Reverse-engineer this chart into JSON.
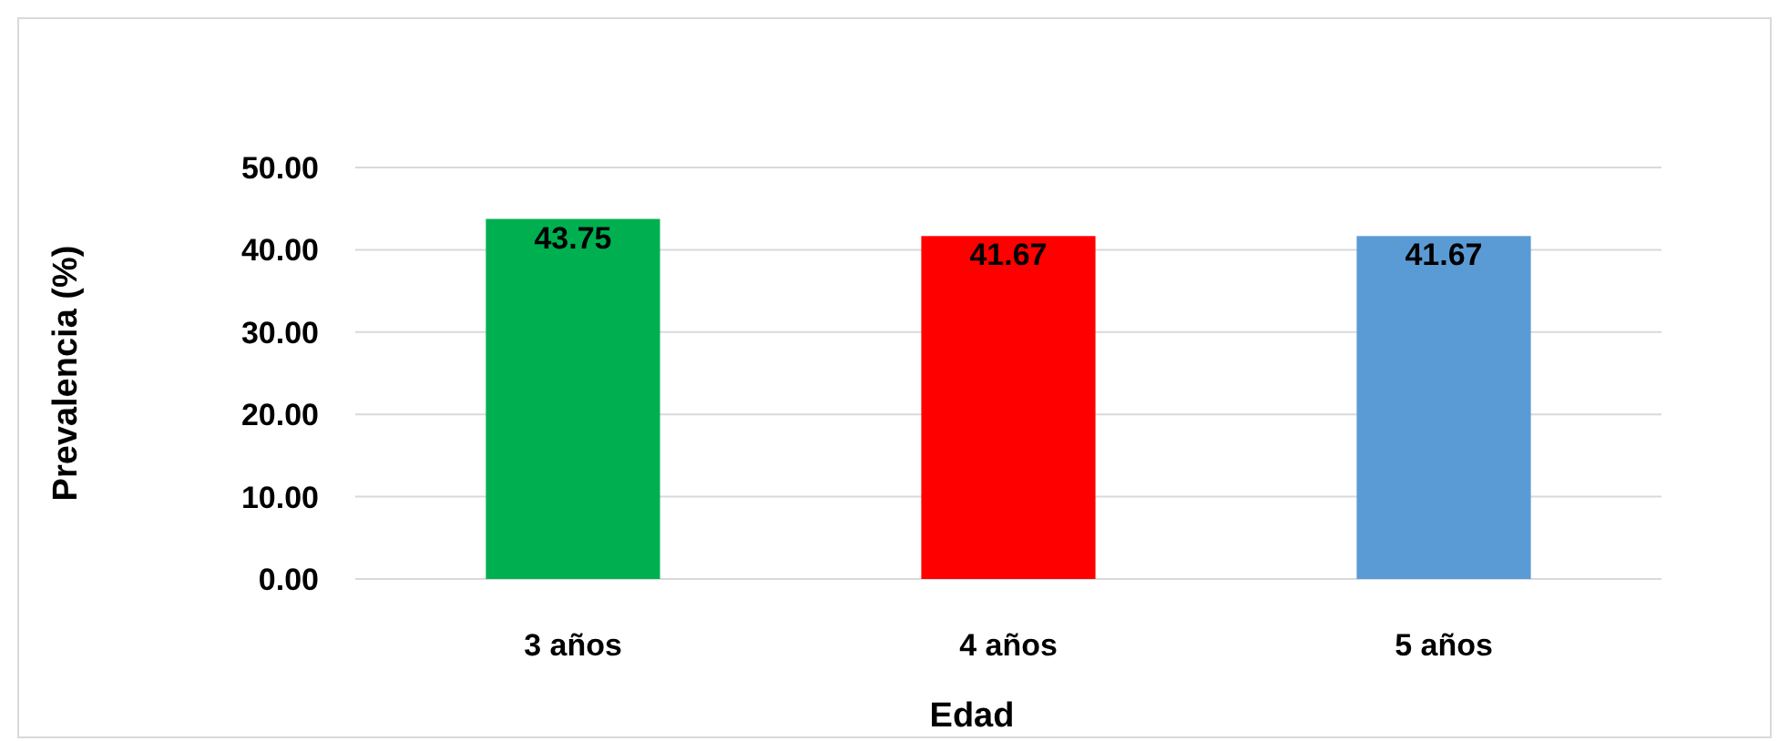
{
  "chart_data": {
    "type": "bar",
    "xlabel": "Edad",
    "ylabel": "Prevalencia (%)",
    "categories": [
      "3 años",
      "4 años",
      "5 años"
    ],
    "values": [
      43.75,
      41.67,
      41.67
    ],
    "colors": [
      "#00b050",
      "#ff0000",
      "#5b9bd5"
    ],
    "ylim": [
      0,
      50
    ],
    "yticks": [
      {
        "value": 0,
        "label": "0.00"
      },
      {
        "value": 10,
        "label": "10.00"
      },
      {
        "value": 20,
        "label": "20.00"
      },
      {
        "value": 30,
        "label": "30.00"
      },
      {
        "value": 40,
        "label": "40.00"
      },
      {
        "value": 50,
        "label": "50.00"
      }
    ],
    "grid": "y",
    "data_labels": true
  }
}
